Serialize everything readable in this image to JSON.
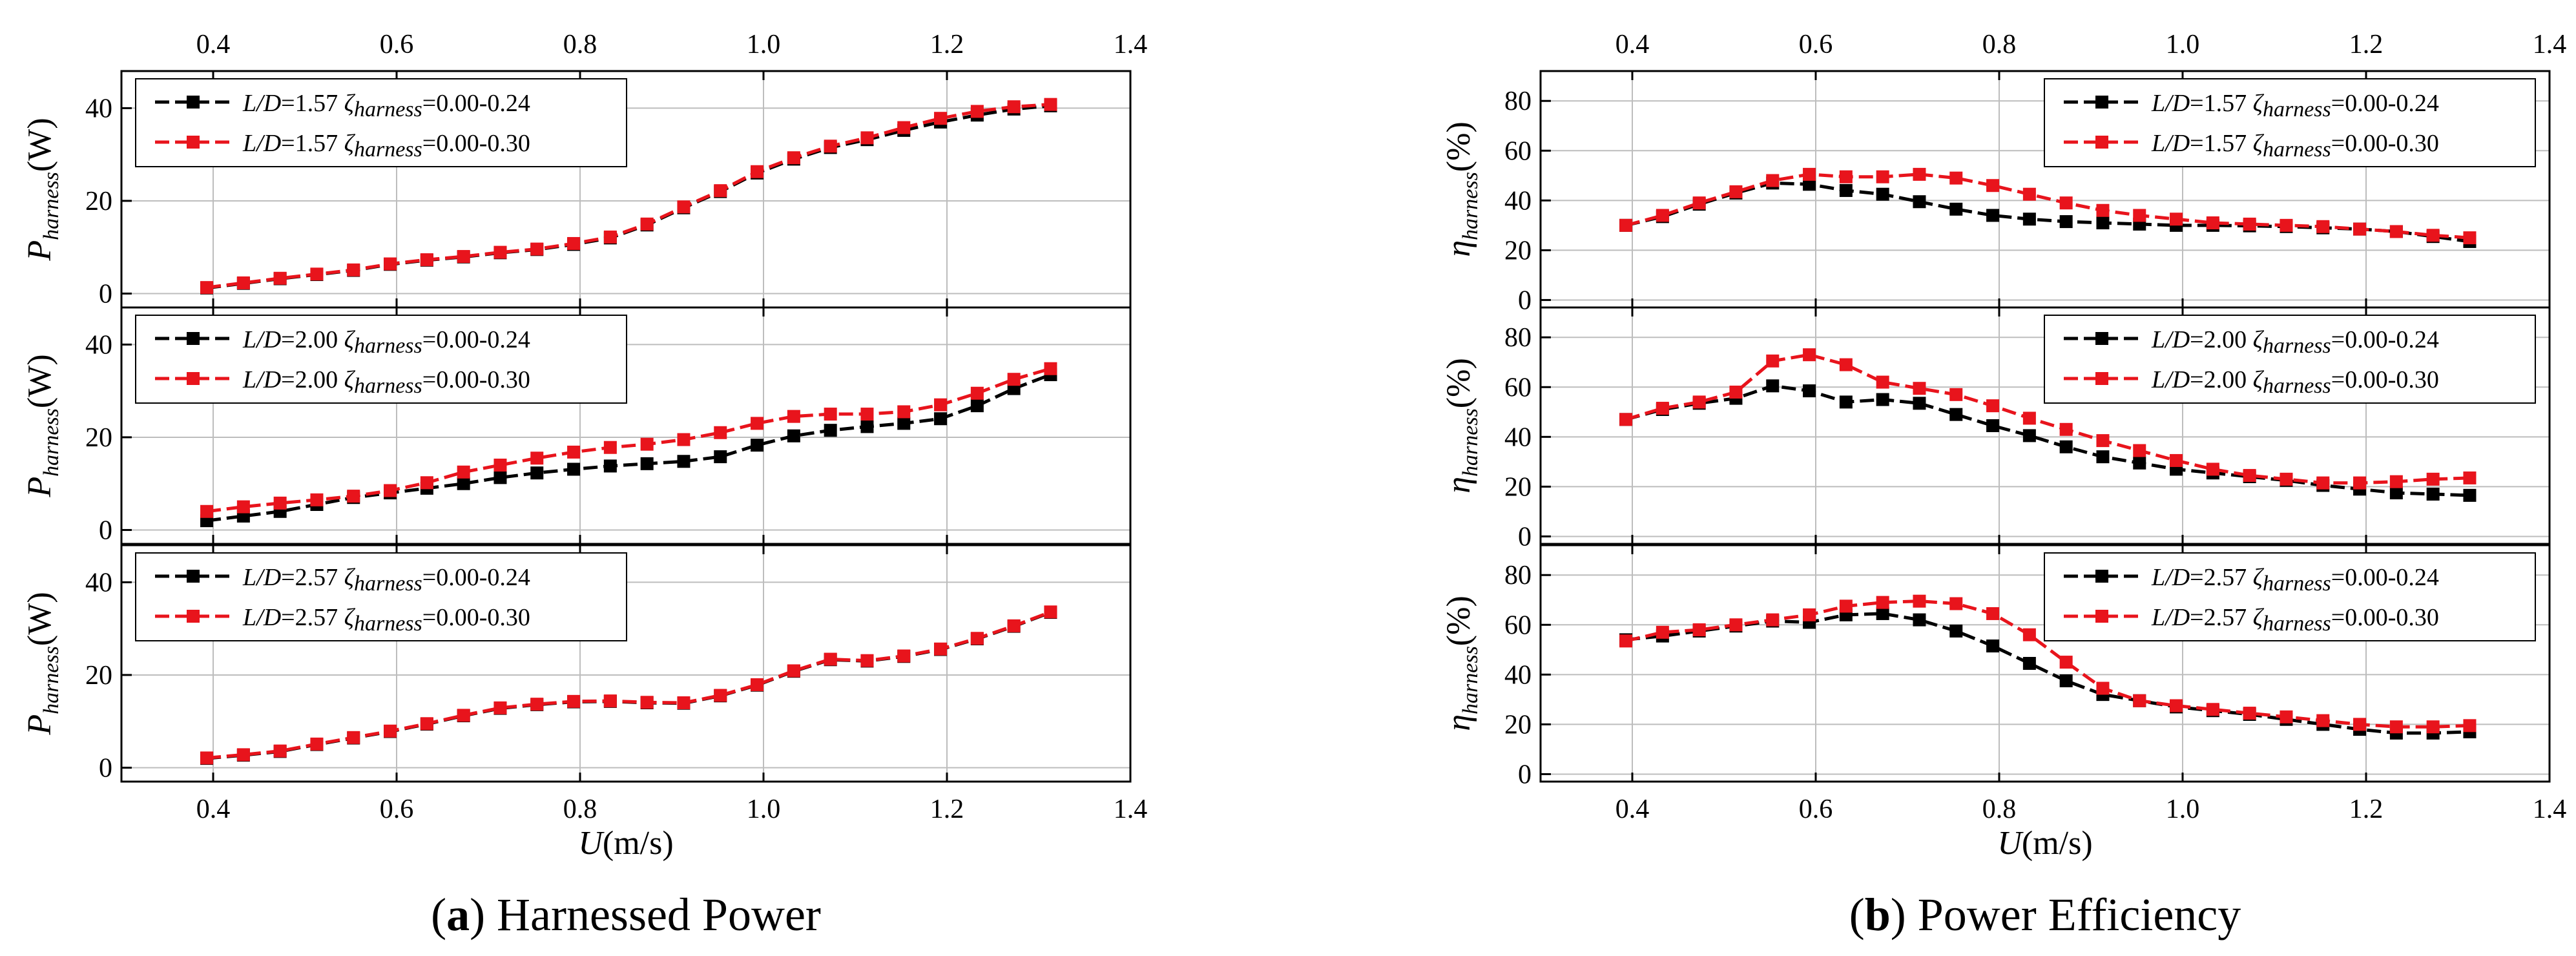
{
  "captions": [
    {
      "letter": "a",
      "text": " Harnessed Power"
    },
    {
      "letter": "b",
      "text": " Power Efficiency"
    }
  ],
  "x_axis": {
    "symbol": "U",
    "unit": "(m/s)",
    "ticks": [
      "0.4",
      "0.6",
      "0.8",
      "1.0",
      "1.2",
      "1.4"
    ],
    "tick_values": [
      0.4,
      0.6,
      0.8,
      1.0,
      1.2,
      1.4
    ],
    "range": [
      0.3,
      1.4
    ]
  },
  "colors": {
    "series1": "#000000",
    "series2": "#e8141c",
    "grid": "#bdbdbd"
  },
  "chart_data": [
    {
      "type": "line",
      "figure": "a",
      "ylabel": {
        "symbol": "P",
        "sub": "harness",
        "unit": "(W)"
      },
      "ylim": [
        -3,
        48
      ],
      "yticks": [
        0,
        20,
        40
      ],
      "grid": true,
      "legend": "top-left",
      "x": [
        0.393,
        0.433,
        0.473,
        0.513,
        0.553,
        0.593,
        0.633,
        0.673,
        0.713,
        0.753,
        0.793,
        0.833,
        0.873,
        0.913,
        0.953,
        0.993,
        1.033,
        1.073,
        1.113,
        1.153,
        1.193,
        1.233,
        1.273,
        1.313
      ],
      "series": [
        {
          "name": {
            "ratio": "L/D",
            "ratio_value": "=1.57",
            "zeta": "ζ",
            "zeta_sub": "harness",
            "range": "=0.00-0.24"
          },
          "color": "#000000",
          "values": [
            1.2,
            2.2,
            3.2,
            4.1,
            5.0,
            6.3,
            7.2,
            7.9,
            8.8,
            9.5,
            10.6,
            12.0,
            14.8,
            18.5,
            22.0,
            26.0,
            29.0,
            31.5,
            33.2,
            35.2,
            37.0,
            38.5,
            39.8,
            40.5
          ]
        },
        {
          "name": {
            "ratio": "L/D",
            "ratio_value": "=1.57",
            "zeta": "ζ",
            "zeta_sub": "harness",
            "range": "=0.00-0.30"
          },
          "color": "#e8141c",
          "values": [
            1.3,
            2.3,
            3.3,
            4.2,
            5.1,
            6.4,
            7.3,
            8.0,
            8.9,
            9.6,
            10.8,
            12.2,
            15.0,
            18.7,
            22.2,
            26.3,
            29.3,
            31.8,
            33.6,
            35.8,
            37.8,
            39.3,
            40.3,
            40.8
          ]
        }
      ]
    },
    {
      "type": "line",
      "figure": "a",
      "ylabel": {
        "symbol": "P",
        "sub": "harness",
        "unit": "(W)"
      },
      "ylim": [
        -3,
        48
      ],
      "yticks": [
        0,
        20,
        40
      ],
      "grid": true,
      "legend": "top-left",
      "x": [
        0.393,
        0.433,
        0.473,
        0.513,
        0.553,
        0.593,
        0.633,
        0.673,
        0.713,
        0.753,
        0.793,
        0.833,
        0.873,
        0.913,
        0.953,
        0.993,
        1.033,
        1.073,
        1.113,
        1.153,
        1.193,
        1.233,
        1.273,
        1.313
      ],
      "series": [
        {
          "name": {
            "ratio": "L/D",
            "ratio_value": "=2.00",
            "zeta": "ζ",
            "zeta_sub": "harness",
            "range": "=0.00-0.24"
          },
          "color": "#000000",
          "values": [
            2.0,
            3.0,
            4.0,
            5.5,
            7.0,
            8.0,
            9.0,
            10.0,
            11.3,
            12.3,
            13.1,
            13.8,
            14.3,
            14.8,
            15.8,
            18.3,
            20.3,
            21.5,
            22.3,
            23.0,
            24.0,
            26.8,
            30.5,
            33.5
          ]
        },
        {
          "name": {
            "ratio": "L/D",
            "ratio_value": "=2.00",
            "zeta": "ζ",
            "zeta_sub": "harness",
            "range": "=0.00-0.30"
          },
          "color": "#e8141c",
          "values": [
            4.0,
            5.0,
            5.8,
            6.5,
            7.3,
            8.5,
            10.2,
            12.5,
            14.0,
            15.5,
            16.8,
            17.8,
            18.5,
            19.5,
            21.0,
            23.0,
            24.5,
            25.0,
            25.0,
            25.5,
            27.0,
            29.5,
            32.5,
            34.8
          ]
        }
      ]
    },
    {
      "type": "line",
      "figure": "a",
      "ylabel": {
        "symbol": "P",
        "sub": "harness",
        "unit": "(W)"
      },
      "ylim": [
        -3,
        48
      ],
      "yticks": [
        0,
        20,
        40
      ],
      "grid": true,
      "legend": "top-left",
      "x": [
        0.393,
        0.433,
        0.473,
        0.513,
        0.553,
        0.593,
        0.633,
        0.673,
        0.713,
        0.753,
        0.793,
        0.833,
        0.873,
        0.913,
        0.953,
        0.993,
        1.033,
        1.073,
        1.113,
        1.153,
        1.193,
        1.233,
        1.273,
        1.313
      ],
      "series": [
        {
          "name": {
            "ratio": "L/D",
            "ratio_value": "=2.57",
            "zeta": "ζ",
            "zeta_sub": "harness",
            "range": "=0.00-0.24"
          },
          "color": "#000000",
          "values": [
            2.0,
            2.7,
            3.5,
            5.0,
            6.4,
            7.8,
            9.4,
            11.2,
            12.8,
            13.6,
            14.2,
            14.3,
            14.0,
            13.9,
            15.5,
            17.8,
            20.8,
            23.3,
            23.0,
            24.0,
            25.5,
            27.8,
            30.5,
            33.5
          ]
        },
        {
          "name": {
            "ratio": "L/D",
            "ratio_value": "=2.57",
            "zeta": "ζ",
            "zeta_sub": "harness",
            "range": "=0.00-0.30"
          },
          "color": "#e8141c",
          "values": [
            2.1,
            2.8,
            3.6,
            5.1,
            6.5,
            7.9,
            9.5,
            11.3,
            12.9,
            13.7,
            14.3,
            14.4,
            14.1,
            14.0,
            15.6,
            17.9,
            20.9,
            23.4,
            23.1,
            24.1,
            25.6,
            27.9,
            30.6,
            33.6
          ]
        }
      ]
    },
    {
      "type": "line",
      "figure": "b",
      "ylabel": {
        "symbol": "η",
        "sub": "harness",
        "unit": "(%)"
      },
      "ylim": [
        -3,
        92
      ],
      "yticks": [
        0,
        20,
        40,
        60,
        80
      ],
      "grid": true,
      "legend": "top-right",
      "x": [
        0.393,
        0.433,
        0.473,
        0.513,
        0.553,
        0.593,
        0.633,
        0.673,
        0.713,
        0.753,
        0.793,
        0.833,
        0.873,
        0.913,
        0.953,
        0.993,
        1.033,
        1.073,
        1.113,
        1.153,
        1.193,
        1.233,
        1.273,
        1.313
      ],
      "series": [
        {
          "name": {
            "ratio": "L/D",
            "ratio_value": "=1.57",
            "zeta": "ζ",
            "zeta_sub": "harness",
            "range": "=0.00-0.24"
          },
          "color": "#000000",
          "values": [
            30.0,
            33.5,
            38.5,
            43.0,
            47.0,
            46.5,
            44.0,
            42.5,
            39.5,
            36.5,
            34.0,
            32.5,
            31.5,
            31.0,
            30.5,
            30.0,
            30.0,
            29.8,
            29.5,
            29.0,
            28.5,
            27.5,
            25.5,
            23.5
          ]
        },
        {
          "name": {
            "ratio": "L/D",
            "ratio_value": "=1.57",
            "zeta": "ζ",
            "zeta_sub": "harness",
            "range": "=0.00-0.30"
          },
          "color": "#e8141c",
          "values": [
            30.0,
            34.0,
            39.0,
            43.5,
            48.0,
            50.5,
            49.5,
            49.5,
            50.5,
            49.0,
            46.0,
            42.5,
            39.0,
            36.0,
            34.0,
            32.5,
            31.0,
            30.5,
            30.0,
            29.5,
            28.5,
            27.5,
            26.0,
            25.0
          ]
        }
      ]
    },
    {
      "type": "line",
      "figure": "b",
      "ylabel": {
        "symbol": "η",
        "sub": "harness",
        "unit": "(%)"
      },
      "ylim": [
        -3,
        92
      ],
      "yticks": [
        0,
        20,
        40,
        60,
        80
      ],
      "grid": true,
      "legend": "top-right",
      "x": [
        0.393,
        0.433,
        0.473,
        0.513,
        0.553,
        0.593,
        0.633,
        0.673,
        0.713,
        0.753,
        0.793,
        0.833,
        0.873,
        0.913,
        0.953,
        0.993,
        1.033,
        1.073,
        1.113,
        1.153,
        1.193,
        1.233,
        1.273,
        1.313
      ],
      "series": [
        {
          "name": {
            "ratio": "L/D",
            "ratio_value": "=2.00",
            "zeta": "ζ",
            "zeta_sub": "harness",
            "range": "=0.00-0.24"
          },
          "color": "#000000",
          "values": [
            47.0,
            51.0,
            53.5,
            55.5,
            60.5,
            58.5,
            54.0,
            55.0,
            53.5,
            49.0,
            44.5,
            40.5,
            36.0,
            32.0,
            29.5,
            27.0,
            25.5,
            24.0,
            22.5,
            20.5,
            19.0,
            17.5,
            17.0,
            16.5
          ]
        },
        {
          "name": {
            "ratio": "L/D",
            "ratio_value": "=2.00",
            "zeta": "ζ",
            "zeta_sub": "harness",
            "range": "=0.00-0.30"
          },
          "color": "#e8141c",
          "values": [
            47.0,
            51.5,
            54.0,
            58.0,
            70.5,
            73.0,
            69.0,
            62.0,
            59.5,
            57.0,
            52.5,
            47.5,
            43.0,
            38.5,
            34.5,
            30.5,
            27.0,
            24.5,
            23.0,
            21.5,
            21.5,
            22.0,
            23.0,
            23.5
          ]
        }
      ]
    },
    {
      "type": "line",
      "figure": "b",
      "ylabel": {
        "symbol": "η",
        "sub": "harness",
        "unit": "(%)"
      },
      "ylim": [
        -3,
        92
      ],
      "yticks": [
        0,
        20,
        40,
        60,
        80
      ],
      "grid": true,
      "legend": "top-right",
      "x": [
        0.393,
        0.433,
        0.473,
        0.513,
        0.553,
        0.593,
        0.633,
        0.673,
        0.713,
        0.753,
        0.793,
        0.833,
        0.873,
        0.913,
        0.953,
        0.993,
        1.033,
        1.073,
        1.113,
        1.153,
        1.193,
        1.233,
        1.273,
        1.313
      ],
      "series": [
        {
          "name": {
            "ratio": "L/D",
            "ratio_value": "=2.57",
            "zeta": "ζ",
            "zeta_sub": "harness",
            "range": "=0.00-0.24"
          },
          "color": "#000000",
          "values": [
            54.0,
            55.5,
            57.5,
            59.5,
            61.5,
            61.0,
            64.0,
            64.5,
            62.0,
            57.5,
            51.5,
            44.5,
            37.5,
            32.0,
            29.5,
            27.0,
            25.5,
            24.0,
            22.0,
            20.0,
            18.0,
            16.5,
            16.5,
            17.0
          ]
        },
        {
          "name": {
            "ratio": "L/D",
            "ratio_value": "=2.57",
            "zeta": "ζ",
            "zeta_sub": "harness",
            "range": "=0.00-0.30"
          },
          "color": "#e8141c",
          "values": [
            53.5,
            57.0,
            58.0,
            60.0,
            62.0,
            64.0,
            67.5,
            69.0,
            69.5,
            68.5,
            64.5,
            56.0,
            45.0,
            34.5,
            29.5,
            27.5,
            26.0,
            24.5,
            23.0,
            21.5,
            20.0,
            19.0,
            19.0,
            19.5
          ]
        }
      ]
    }
  ]
}
